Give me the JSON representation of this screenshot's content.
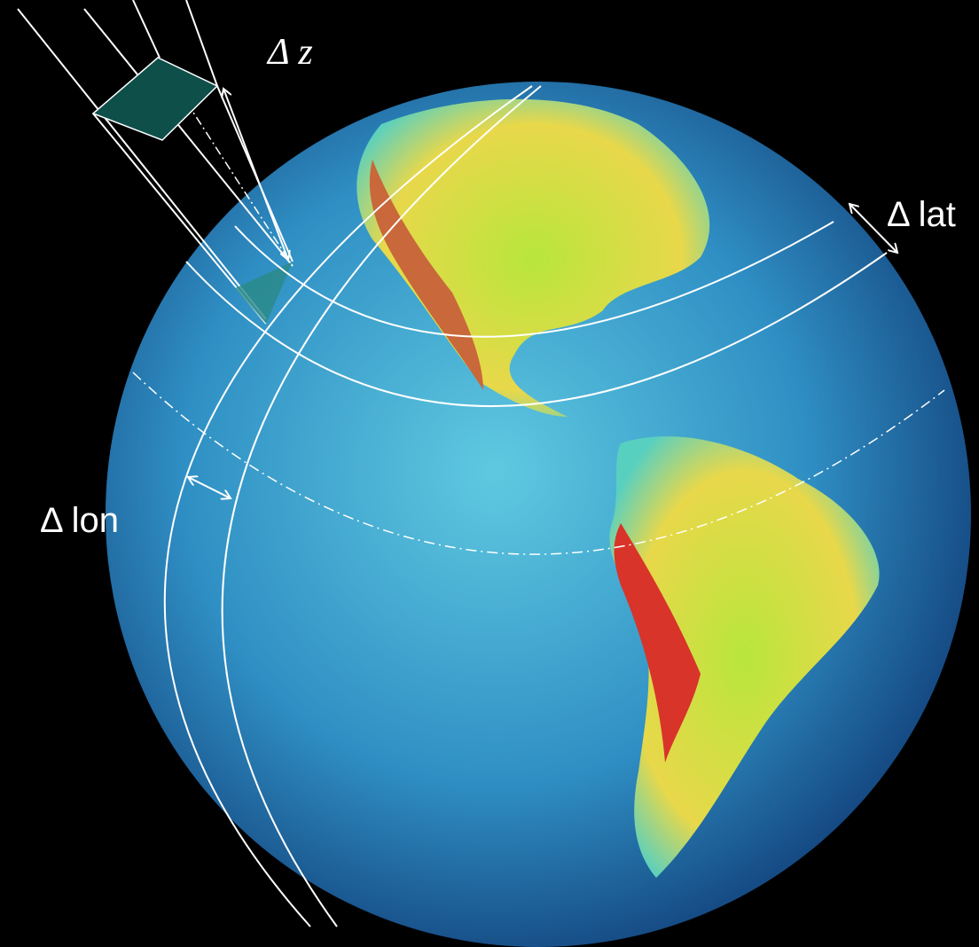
{
  "labels": {
    "delta_z": "Δ z",
    "delta_lat": "Δ lat",
    "delta_lon": "Δ lon"
  }
}
